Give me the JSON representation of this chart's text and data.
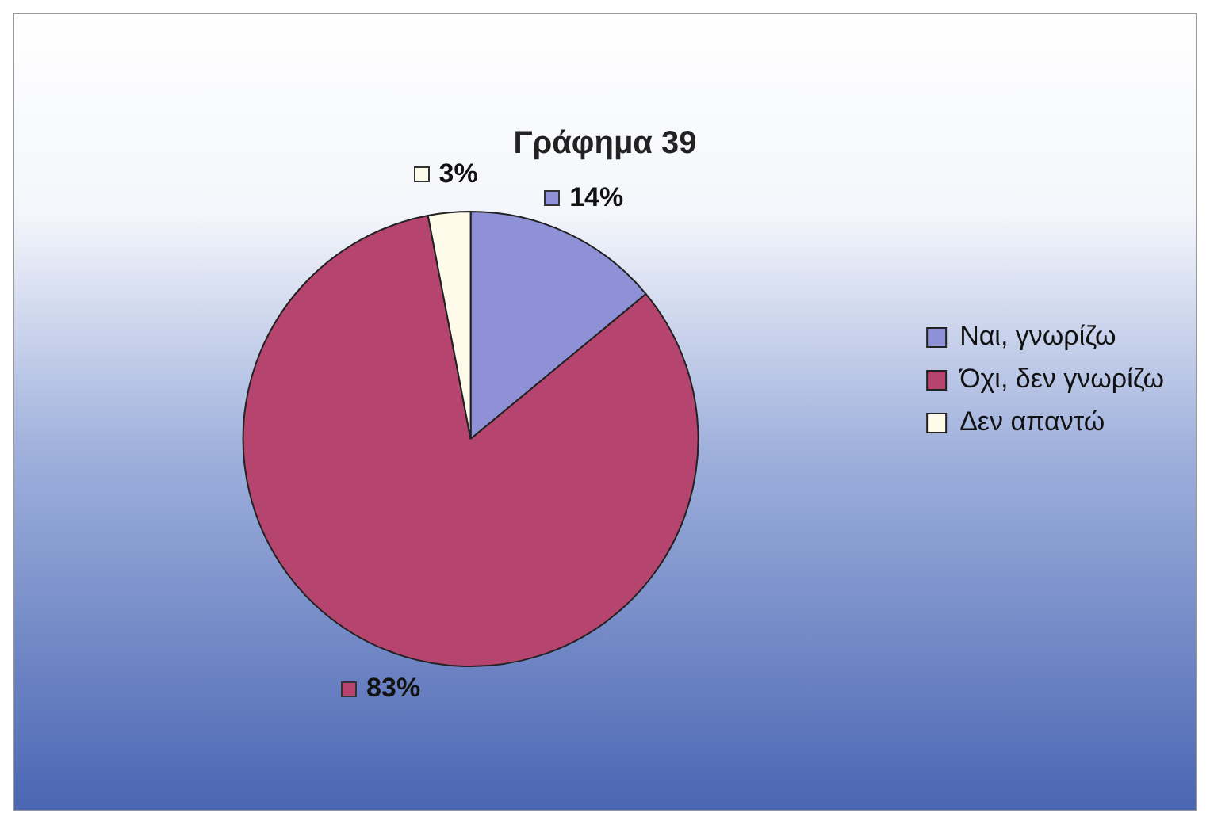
{
  "chart_data": {
    "type": "pie",
    "title": "Γράφημα 39",
    "categories": [
      "Ναι, γνωρίζω",
      "Όχι, δεν γνωρίζω",
      "Δεν απαντώ"
    ],
    "values": [
      14,
      83,
      3
    ],
    "colors": [
      "#8f91d6",
      "#b5456f",
      "#fffbea"
    ],
    "value_labels": [
      "14%",
      "83%",
      "3%"
    ],
    "legend": "right"
  }
}
